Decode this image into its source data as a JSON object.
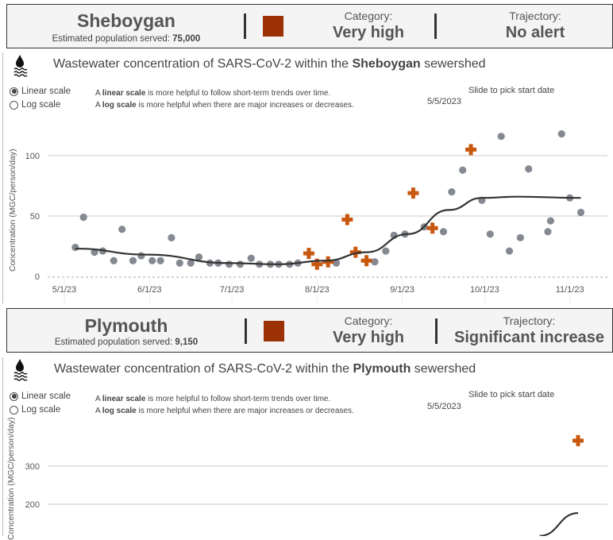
{
  "panels": [
    {
      "city": "Sheboygan",
      "population_label": "Estimated population served:",
      "population": "75,000",
      "category_label": "Category:",
      "category": "Very high",
      "category_color": "#9b3104",
      "trajectory_label": "Trajectory:",
      "trajectory": "No alert",
      "chart_title_prefix": "Wastewater concentration of SARS-CoV-2 within the ",
      "chart_title_city": "Sheboygan",
      "chart_title_suffix": " sewershed"
    },
    {
      "city": "Plymouth",
      "population_label": "Estimated population served:",
      "population": "9,150",
      "category_label": "Category:",
      "category": "Very high",
      "category_color": "#9b3104",
      "trajectory_label": "Trajectory:",
      "trajectory": "Significant increase",
      "chart_title_prefix": "Wastewater concentration of SARS-CoV-2 within the ",
      "chart_title_city": "Plymouth",
      "chart_title_suffix": " sewershed"
    }
  ],
  "controls": {
    "linear_label": "Linear scale",
    "log_label": "Log scale",
    "selected": "linear",
    "note1_a": "A ",
    "note1_b": "linear scale",
    "note1_c": " is more helpful to follow short-term trends over time.",
    "note2_a": "A ",
    "note2_b": "log scale",
    "note2_c": " is more helpful when there are major increases or decreases.",
    "slider_label": "Slide to pick start date",
    "start_date": "5/5/2023"
  },
  "chart_data": [
    {
      "type": "scatter",
      "title": "Wastewater concentration of SARS-CoV-2 within the Sheboygan sewershed",
      "ylabel": "Concentration (MGC/person/day)",
      "xlabel": "",
      "ylim": [
        0,
        125
      ],
      "yticks": [
        0,
        50,
        100
      ],
      "xticks": [
        {
          "day": 0,
          "label": "5/1/23"
        },
        {
          "day": 31,
          "label": "6/1/23"
        },
        {
          "day": 61,
          "label": "7/1/23"
        },
        {
          "day": 92,
          "label": "8/1/23"
        },
        {
          "day": 123,
          "label": "9/1/23"
        },
        {
          "day": 153,
          "label": "10/1/23"
        },
        {
          "day": 184,
          "label": "11/1/23"
        }
      ],
      "x_units": "days since 5/1/23",
      "series": [
        {
          "name": "samples",
          "marker": "circle",
          "color": "#858991",
          "points": [
            [
              4,
              24
            ],
            [
              7,
              49
            ],
            [
              11,
              20
            ],
            [
              14,
              21
            ],
            [
              18,
              13
            ],
            [
              21,
              39
            ],
            [
              25,
              13
            ],
            [
              28,
              17
            ],
            [
              32,
              13
            ],
            [
              35,
              13
            ],
            [
              39,
              32
            ],
            [
              42,
              11
            ],
            [
              46,
              11
            ],
            [
              49,
              16
            ],
            [
              53,
              11
            ],
            [
              56,
              11
            ],
            [
              60,
              10
            ],
            [
              64,
              10
            ],
            [
              68,
              15
            ],
            [
              71,
              10
            ],
            [
              75,
              10
            ],
            [
              78,
              10
            ],
            [
              82,
              10
            ],
            [
              85,
              11
            ],
            [
              99,
              11
            ],
            [
              113,
              12
            ],
            [
              117,
              21
            ],
            [
              120,
              34
            ],
            [
              124,
              35
            ],
            [
              131,
              41
            ],
            [
              138,
              37
            ],
            [
              141,
              70
            ],
            [
              145,
              88
            ],
            [
              152,
              63
            ],
            [
              155,
              35
            ],
            [
              159,
              116
            ],
            [
              162,
              21
            ],
            [
              166,
              32
            ],
            [
              169,
              89
            ],
            [
              176,
              37
            ],
            [
              177,
              46
            ],
            [
              181,
              118
            ],
            [
              184,
              65
            ],
            [
              188,
              53
            ]
          ]
        },
        {
          "name": "flagged",
          "marker": "cross",
          "color": "#c8570f",
          "points": [
            [
              89,
              19
            ],
            [
              92,
              10
            ],
            [
              96,
              12
            ],
            [
              103,
              47
            ],
            [
              106,
              20
            ],
            [
              110,
              13
            ],
            [
              127,
              69
            ],
            [
              134,
              40
            ],
            [
              148,
              105
            ]
          ]
        },
        {
          "name": "trend",
          "marker": "line",
          "color": "#333333",
          "points": [
            [
              4,
              23
            ],
            [
              30,
              18
            ],
            [
              60,
              11
            ],
            [
              78,
              10
            ],
            [
              95,
              13
            ],
            [
              110,
              20
            ],
            [
              125,
              35
            ],
            [
              140,
              55
            ],
            [
              152,
              65
            ],
            [
              165,
              66
            ],
            [
              188,
              65
            ]
          ]
        }
      ]
    },
    {
      "type": "scatter",
      "title": "Wastewater concentration of SARS-CoV-2 within the Plymouth sewershed",
      "ylabel": "Concentration (MGC/person/day)",
      "ylim": [
        0,
        400
      ],
      "yticks": [
        200,
        300
      ],
      "series": [
        {
          "name": "flagged",
          "marker": "cross",
          "color": "#c8570f",
          "points": [
            [
              187,
              367
            ]
          ]
        },
        {
          "name": "trend",
          "marker": "line",
          "color": "#333333",
          "points": [
            [
              173,
              117
            ],
            [
              187,
              177
            ]
          ]
        }
      ]
    }
  ]
}
